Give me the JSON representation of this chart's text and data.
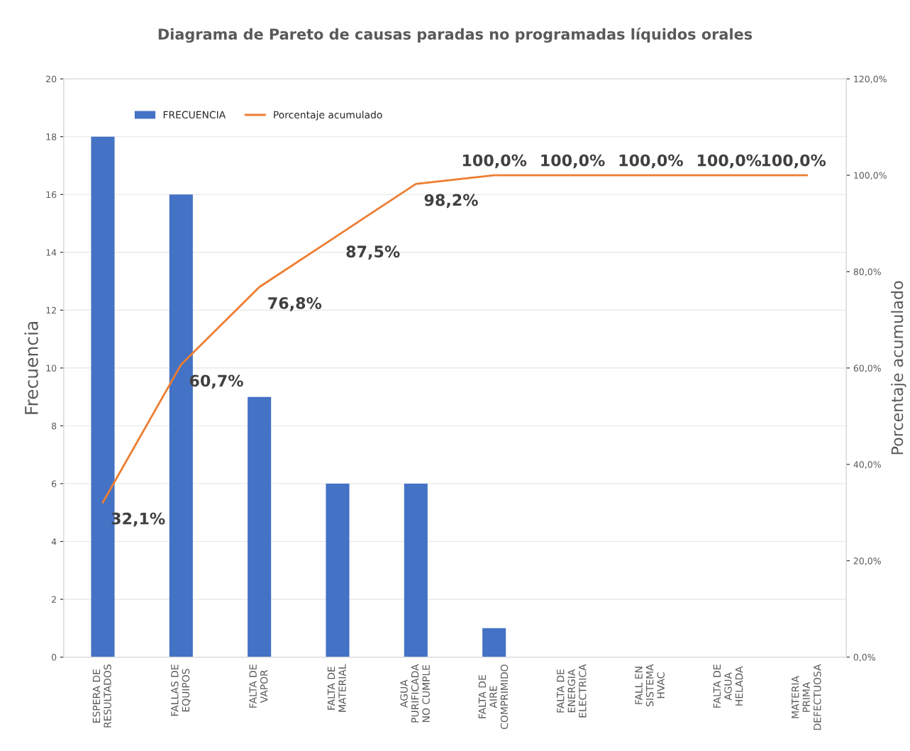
{
  "chart_data": {
    "type": "bar",
    "title": "Diagrama de Pareto de causas paradas no programadas líquidos orales",
    "ylabel": "Frecuencia",
    "y2label": "Porcentaje acumulado",
    "categories": [
      "ESPERA DE\nRESULTADOS",
      "FALLAS DE\nEQUIPOS",
      "FALTA DE\nVAPOR",
      "FALTA DE\nMATERIAL",
      "AGUA\nPURIFICADA\nNO CUMPLE",
      "FALTA DE\nAIRE\nCOMPRIMIDO",
      "FALTA DE\nENERGIA\nELECTRICA",
      "FALL EN\nSISTEMA\nHVAC",
      "FALTA DE\nAGUA\nHELADA",
      "MATERIA\nPRIMA\nDEFECTUOSA"
    ],
    "series": [
      {
        "name": "FRECUENCIA",
        "color": "#4472c4",
        "values": [
          18,
          16,
          9,
          6,
          6,
          1,
          0,
          0,
          0,
          0
        ]
      },
      {
        "name": "Porcentaje acumulado",
        "type": "line",
        "axis": "y2",
        "color": "#ed7d31",
        "values": [
          32.1,
          60.7,
          76.8,
          87.5,
          98.2,
          100,
          100,
          100,
          100,
          100
        ],
        "value_labels": [
          "32,1%",
          "60,7%",
          "76,8%",
          "87,5%",
          "98,2%",
          "100,0%",
          "100,0%",
          "100,0%",
          "100,0%",
          "100,0%"
        ]
      }
    ],
    "ylim": [
      0,
      20
    ],
    "yticks": [
      0,
      2,
      4,
      6,
      8,
      10,
      12,
      14,
      16,
      18,
      20
    ],
    "y2lim": [
      0,
      120
    ],
    "y2ticks": [
      {
        "value": 0,
        "label": "0,0%"
      },
      {
        "value": 20,
        "label": "20,0%"
      },
      {
        "value": 40,
        "label": "40,0%"
      },
      {
        "value": 60,
        "label": "60,0%"
      },
      {
        "value": 80,
        "label": "80,0%"
      },
      {
        "value": 100,
        "label": "100,0%"
      },
      {
        "value": 120,
        "label": "120,0%"
      }
    ],
    "grid": "y",
    "legend": "top left"
  }
}
